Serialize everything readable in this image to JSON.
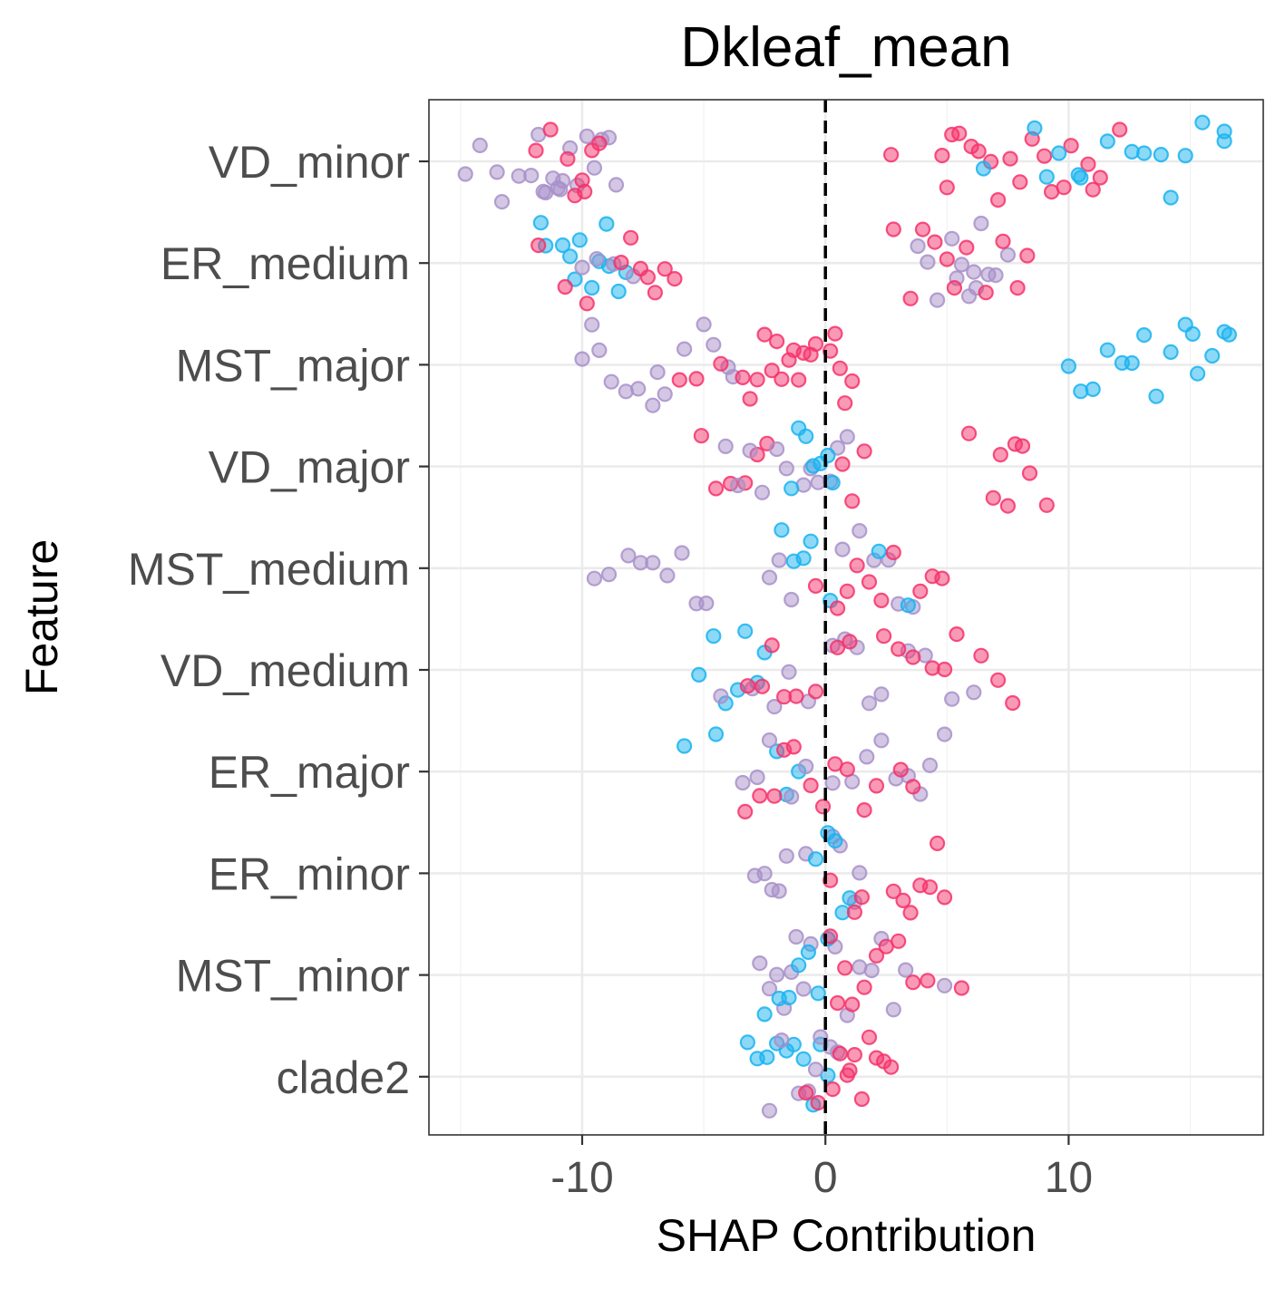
{
  "chart_data": {
    "type": "scatter",
    "title": "Dkleaf_mean",
    "xlabel": "SHAP Contribution",
    "ylabel": "Feature",
    "xlim": [
      -16.3,
      18
    ],
    "xticks": [
      -10,
      0,
      10
    ],
    "xtick_labels": [
      "-10",
      "0",
      "10"
    ],
    "reference_line": {
      "x": 0,
      "style": "dashed"
    },
    "grid": true,
    "colors": {
      "low": "#1ab3f0",
      "mid": "#a890c9",
      "high": "#f5336b"
    },
    "features": [
      "VD_minor",
      "ER_medium",
      "MST_major",
      "VD_major",
      "MST_medium",
      "VD_medium",
      "ER_major",
      "ER_minor",
      "MST_minor",
      "clade2"
    ],
    "series": [
      {
        "feature": "VD_minor",
        "groups": [
          {
            "color": "mid",
            "values": [
              -14.8,
              -14.2,
              -13.5,
              -13.3,
              -12.6,
              -12.1,
              -11.8,
              -11.5,
              -11.2,
              -11.0,
              -10.8,
              -10.5,
              -10.2,
              -9.8,
              -9.5,
              -9.2,
              -8.9,
              -8.6,
              -11.6,
              -10.9
            ]
          },
          {
            "color": "high",
            "values": [
              -11.3,
              -10.6,
              -10.0,
              -9.6,
              -9.3,
              -11.9,
              -10.3,
              -9.9,
              2.7,
              4.8,
              5.0,
              5.2,
              5.5,
              6.0,
              6.3,
              6.8,
              7.1,
              7.6,
              8.0,
              8.5,
              9.0,
              9.3,
              9.8,
              10.1,
              10.8,
              11.0,
              11.3,
              12.1
            ]
          },
          {
            "color": "low",
            "values": [
              6.5,
              8.6,
              9.1,
              9.6,
              10.5,
              11.6,
              12.6,
              13.1,
              13.8,
              14.2,
              14.8,
              15.5,
              16.4,
              16.4,
              10.4
            ]
          }
        ]
      },
      {
        "feature": "ER_medium",
        "groups": [
          {
            "color": "low",
            "values": [
              -11.7,
              -11.5,
              -10.8,
              -10.5,
              -10.1,
              -9.6,
              -9.3,
              -8.9,
              -8.5,
              -8.2,
              -10.3,
              -9.0
            ]
          },
          {
            "color": "mid",
            "values": [
              -10.0,
              -9.4,
              -8.7,
              -7.9,
              3.8,
              4.2,
              4.6,
              5.2,
              5.6,
              5.9,
              6.1,
              6.4,
              6.7,
              7.0,
              7.5,
              6.2,
              5.4
            ]
          },
          {
            "color": "high",
            "values": [
              -11.8,
              -10.7,
              -9.8,
              -8.4,
              -8.0,
              -7.6,
              -7.3,
              -7.0,
              -6.6,
              -6.2,
              2.8,
              3.5,
              4.0,
              4.5,
              5.0,
              5.3,
              5.8,
              6.6,
              7.3,
              7.9,
              8.3
            ]
          }
        ]
      },
      {
        "feature": "MST_major",
        "groups": [
          {
            "color": "mid",
            "values": [
              -10.0,
              -9.6,
              -9.3,
              -8.8,
              -8.2,
              -7.7,
              -7.1,
              -6.9,
              -6.6,
              -5.8,
              -5.0,
              -4.6,
              -4.0,
              -3.8
            ]
          },
          {
            "color": "high",
            "values": [
              -6.0,
              -5.3,
              -4.3,
              -3.4,
              -3.1,
              -2.8,
              -2.5,
              -2.2,
              -2.0,
              -1.8,
              -1.5,
              -1.3,
              -1.1,
              -0.9,
              -0.6,
              -0.4,
              0.2,
              0.4,
              0.6,
              0.8,
              1.1
            ]
          },
          {
            "color": "low",
            "values": [
              10.0,
              10.5,
              11.0,
              11.6,
              12.2,
              12.6,
              13.1,
              13.6,
              14.2,
              14.8,
              15.3,
              15.9,
              16.4,
              16.6,
              15.1
            ]
          }
        ]
      },
      {
        "feature": "VD_major",
        "groups": [
          {
            "color": "high",
            "values": [
              -5.1,
              -4.5,
              -3.9,
              -3.3,
              -2.8,
              -2.4,
              0.7,
              1.1,
              1.6,
              5.9,
              6.9,
              7.2,
              7.5,
              7.8,
              8.1,
              8.4,
              9.1
            ]
          },
          {
            "color": "mid",
            "values": [
              -4.1,
              -3.6,
              -3.1,
              -2.6,
              -2.0,
              -1.6,
              -0.9,
              -0.6,
              -0.3,
              0.2,
              0.5,
              0.9
            ]
          },
          {
            "color": "low",
            "values": [
              -1.4,
              -1.1,
              -0.8,
              -0.5,
              -0.2,
              0.1,
              0.3
            ]
          }
        ]
      },
      {
        "feature": "MST_medium",
        "groups": [
          {
            "color": "mid",
            "values": [
              -9.5,
              -8.9,
              -8.1,
              -7.6,
              -7.1,
              -6.5,
              -5.9,
              -5.3,
              -4.9,
              -2.3,
              -1.9,
              -1.4,
              0.7,
              1.4,
              2.0,
              2.6,
              3.0,
              3.6
            ]
          },
          {
            "color": "low",
            "values": [
              -1.8,
              -1.3,
              -0.9,
              -0.6,
              0.2,
              2.2,
              3.4
            ]
          },
          {
            "color": "high",
            "values": [
              -0.4,
              0.5,
              0.9,
              1.3,
              1.8,
              2.3,
              2.8,
              3.9,
              4.4,
              4.8
            ]
          }
        ]
      },
      {
        "feature": "VD_medium",
        "groups": [
          {
            "color": "low",
            "values": [
              -5.2,
              -4.6,
              -4.1,
              -3.6,
              -3.3,
              -2.8,
              -2.5
            ]
          },
          {
            "color": "mid",
            "values": [
              -4.3,
              -3.0,
              -2.1,
              -1.5,
              -0.7,
              0.3,
              0.8,
              1.3,
              1.8,
              2.3,
              3.4,
              4.1,
              5.2,
              6.1
            ]
          },
          {
            "color": "high",
            "values": [
              -3.2,
              -2.6,
              -2.2,
              -1.7,
              -1.2,
              -0.4,
              0.5,
              1.0,
              2.4,
              3.0,
              3.6,
              4.4,
              4.9,
              5.4,
              6.4,
              7.1,
              7.7
            ]
          }
        ]
      },
      {
        "feature": "ER_major",
        "groups": [
          {
            "color": "low",
            "values": [
              -5.8,
              -4.5,
              -2.0,
              -1.6,
              -1.1
            ]
          },
          {
            "color": "mid",
            "values": [
              -3.4,
              -2.8,
              -2.3,
              -1.4,
              -0.8,
              0.3,
              1.1,
              1.7,
              2.3,
              2.9,
              3.4,
              3.9,
              4.3,
              4.9
            ]
          },
          {
            "color": "high",
            "values": [
              -3.3,
              -2.7,
              -2.1,
              -1.7,
              -1.3,
              -0.6,
              -0.1,
              0.4,
              0.9,
              1.6,
              2.1,
              3.1,
              3.6
            ]
          }
        ]
      },
      {
        "feature": "ER_minor",
        "groups": [
          {
            "color": "mid",
            "values": [
              -2.9,
              -2.5,
              -2.2,
              -1.9,
              -1.6,
              -0.8,
              0.3,
              0.6,
              1.2,
              1.4
            ]
          },
          {
            "color": "low",
            "values": [
              -0.4,
              0.1,
              0.4,
              0.7,
              1.0
            ]
          },
          {
            "color": "high",
            "values": [
              0.2,
              1.2,
              1.5,
              2.8,
              3.2,
              3.5,
              3.9,
              4.3,
              4.6,
              4.9
            ]
          }
        ]
      },
      {
        "feature": "MST_minor",
        "groups": [
          {
            "color": "mid",
            "values": [
              -2.7,
              -2.3,
              -2.0,
              -1.7,
              -1.4,
              -1.2,
              -0.9,
              -0.6,
              0.4,
              0.9,
              1.4,
              1.9,
              2.3,
              2.8,
              3.3,
              4.9
            ]
          },
          {
            "color": "low",
            "values": [
              -2.5,
              -1.9,
              -1.5,
              -1.1,
              -0.7,
              -0.3,
              0.1
            ]
          },
          {
            "color": "high",
            "values": [
              0.2,
              0.5,
              0.8,
              1.1,
              1.6,
              2.1,
              2.5,
              3.0,
              3.6,
              4.2,
              5.6
            ]
          }
        ]
      },
      {
        "feature": "clade2",
        "groups": [
          {
            "color": "low",
            "values": [
              -3.2,
              -2.8,
              -2.4,
              -2.0,
              -1.6,
              -1.3,
              -0.9,
              -0.5,
              -0.2,
              0.1
            ]
          },
          {
            "color": "mid",
            "values": [
              -2.3,
              -1.8,
              -1.1,
              -0.7,
              -0.4,
              -0.2,
              0.2,
              0.5
            ]
          },
          {
            "color": "high",
            "values": [
              -0.8,
              -0.3,
              0.3,
              0.6,
              0.9,
              1.2,
              1.5,
              1.8,
              2.1,
              2.4,
              2.7,
              1.0
            ]
          }
        ]
      }
    ]
  }
}
